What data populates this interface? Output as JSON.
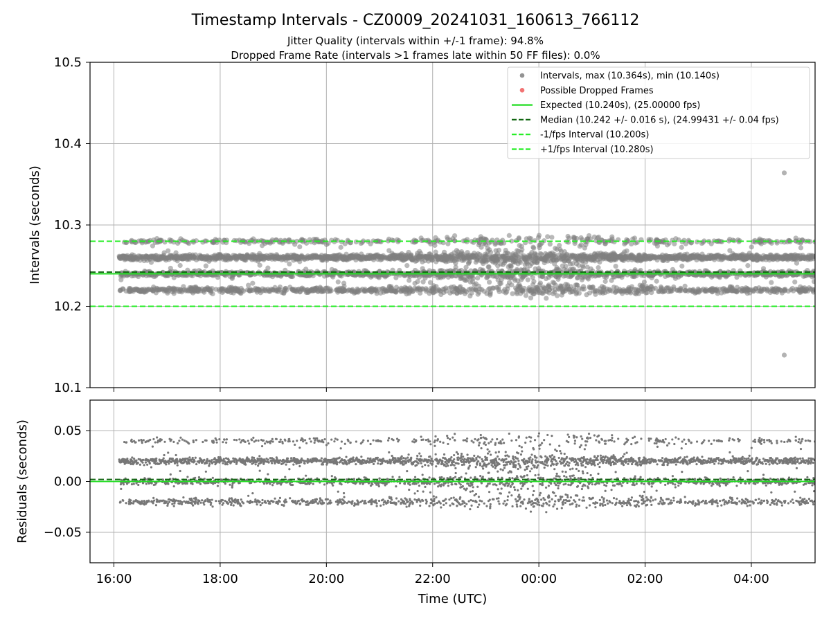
{
  "figure": {
    "title": "Timestamp Intervals - CZ0009_20241031_160613_766112",
    "subtitle1": "Jitter Quality (intervals within +/-1 frame): 94.8%",
    "subtitle2": "Dropped Frame Rate (intervals >1 frames late within 50 FF files): 0.0%"
  },
  "chart_data": [
    {
      "type": "scatter",
      "panel": "intervals",
      "xlabel": "",
      "ylabel": "Intervals (seconds)",
      "ylim": [
        10.1,
        10.5
      ],
      "yticks": [
        "10.1",
        "10.2",
        "10.3",
        "10.4",
        "10.5"
      ],
      "xlim_hours": [
        15.55,
        29.2
      ],
      "xticks": [
        {
          "hour": 16,
          "label": "16:00"
        },
        {
          "hour": 18,
          "label": "18:00"
        },
        {
          "hour": 20,
          "label": "20:00"
        },
        {
          "hour": 22,
          "label": "22:00"
        },
        {
          "hour": 24,
          "label": "00:00"
        },
        {
          "hour": 26,
          "label": "02:00"
        },
        {
          "hour": 28,
          "label": "04:00"
        }
      ],
      "grid": true,
      "legend_position": "top-right",
      "series": [
        {
          "name": "Intervals, max (10.364s), min (10.140s)",
          "kind": "scatter",
          "color": "#808080",
          "x_range_hours": [
            16.1,
            29.2
          ],
          "levels": [
            10.22,
            10.24,
            10.26,
            10.28
          ],
          "max": 10.364,
          "min": 10.14,
          "outliers": [
            {
              "hour": 28.62,
              "value": 10.364
            },
            {
              "hour": 28.62,
              "value": 10.14
            }
          ]
        },
        {
          "name": "Possible Dropped Frames",
          "kind": "scatter",
          "color": "#f05a5a",
          "count": 0
        },
        {
          "name": "Expected (10.240s), (25.00000 fps)",
          "kind": "hline",
          "value": 10.24,
          "color": "#22dd22",
          "style": "solid"
        },
        {
          "name": "Median (10.242 +/- 0.016 s), (24.99431 +/- 0.04 fps)",
          "kind": "hline",
          "value": 10.242,
          "color": "#116611",
          "style": "dashed"
        },
        {
          "name": "-1/fps Interval (10.200s)",
          "kind": "hline",
          "value": 10.2,
          "color": "#22ee22",
          "style": "dashed"
        },
        {
          "name": "+1/fps Interval (10.280s)",
          "kind": "hline",
          "value": 10.28,
          "color": "#22ee22",
          "style": "dashed"
        }
      ]
    },
    {
      "type": "scatter",
      "panel": "residuals",
      "xlabel": "Time (UTC)",
      "ylabel": "Residuals (seconds)",
      "ylim": [
        -0.08,
        0.08
      ],
      "yticks": [
        {
          "value": 0.05,
          "label": "0.05"
        },
        {
          "value": 0.0,
          "label": "0.00"
        },
        {
          "value": -0.05,
          "label": "−0.05"
        }
      ],
      "grid": true,
      "series": [
        {
          "kind": "scatter",
          "color": "#777777",
          "levels": [
            -0.02,
            0.0,
            0.02,
            0.04
          ]
        },
        {
          "kind": "hline",
          "value": 0.0,
          "color": "#22dd22",
          "style": "solid"
        },
        {
          "kind": "hline",
          "value": 0.002,
          "color": "#116611",
          "style": "dashed"
        }
      ]
    }
  ]
}
